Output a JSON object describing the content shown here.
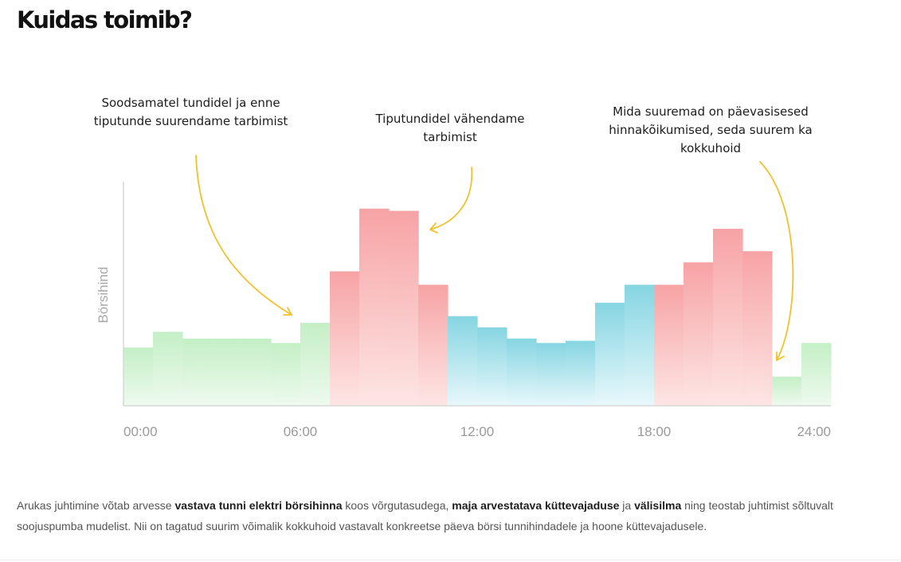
{
  "heading": "Kuidas toimib?",
  "colors": {
    "low": "#c6f0c8",
    "peak": "#f7a7a7",
    "mid": "#8ad7e3",
    "annotation_arrow": "#f2c12e"
  },
  "chart_data": {
    "type": "bar",
    "ylabel": "Börsihind",
    "xlabel": "",
    "x_ticks": [
      "00:00",
      "06:00",
      "12:00",
      "18:00",
      "24:00"
    ],
    "ylim": [
      0,
      100
    ],
    "hours": [
      0,
      1,
      2,
      3,
      4,
      5,
      6,
      7,
      8,
      9,
      10,
      11,
      12,
      13,
      14,
      15,
      16,
      17,
      18,
      19,
      20,
      21,
      22,
      23
    ],
    "values": [
      26,
      33,
      30,
      30,
      30,
      28,
      37,
      60,
      88,
      87,
      54,
      40,
      35,
      30,
      28,
      29,
      46,
      54,
      54,
      64,
      79,
      69,
      13,
      28
    ],
    "zones": [
      "low",
      "low",
      "low",
      "low",
      "low",
      "low",
      "low",
      "peak",
      "peak",
      "peak",
      "peak",
      "mid",
      "mid",
      "mid",
      "mid",
      "mid",
      "mid",
      "mid",
      "peak",
      "peak",
      "peak",
      "peak",
      "low",
      "low"
    ],
    "grid": false,
    "legend": "none"
  },
  "annotations": {
    "left": "Soodsamatel tundidel ja enne tiputunde suurendame tarbimist",
    "middle": "Tiputundidel vähendame tarbimist",
    "right": "Mida suuremad on päevasisesed hinnakõikumised, seda suurem ka kokkuhoid"
  },
  "description": {
    "part1": "Arukas juhtimine võtab arvesse ",
    "bold1": "vastava tunni elektri börsihinna",
    "part2": " koos võrgutasudega, ",
    "bold2": "maja arvestatava küttevajaduse",
    "part3": " ja ",
    "bold3": "välisilma",
    "part4": " ning teostab juhtimist sõltuvalt soojuspumba mudelist. Nii on tagatud suurim võimalik kokkuhoid vastavalt konkreetse päeva börsi tunnihindadele ja hoone küttevajadusele."
  }
}
